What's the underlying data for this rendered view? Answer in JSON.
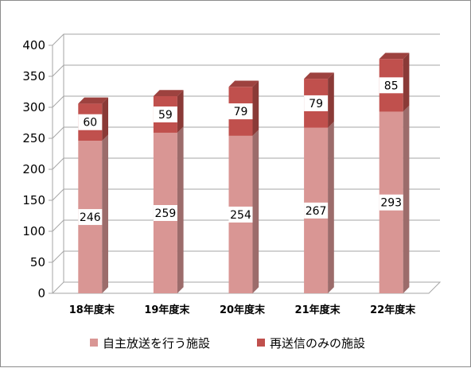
{
  "chart_data": {
    "type": "bar",
    "stacked": true,
    "categories": [
      "18年度末",
      "19年度末",
      "20年度末",
      "21年度末",
      "22年度末"
    ],
    "series": [
      {
        "name": "自主放送を行う施設",
        "values": [
          246,
          259,
          254,
          267,
          293
        ],
        "color": "#d99694"
      },
      {
        "name": "再送信のみの施設",
        "values": [
          60,
          59,
          79,
          79,
          85
        ],
        "color": "#c0504d"
      }
    ],
    "ylim": [
      0,
      400
    ],
    "yticks": [
      0,
      50,
      100,
      150,
      200,
      250,
      300,
      350,
      400
    ],
    "grid": true,
    "legend_position": "bottom",
    "data_labels": true
  }
}
